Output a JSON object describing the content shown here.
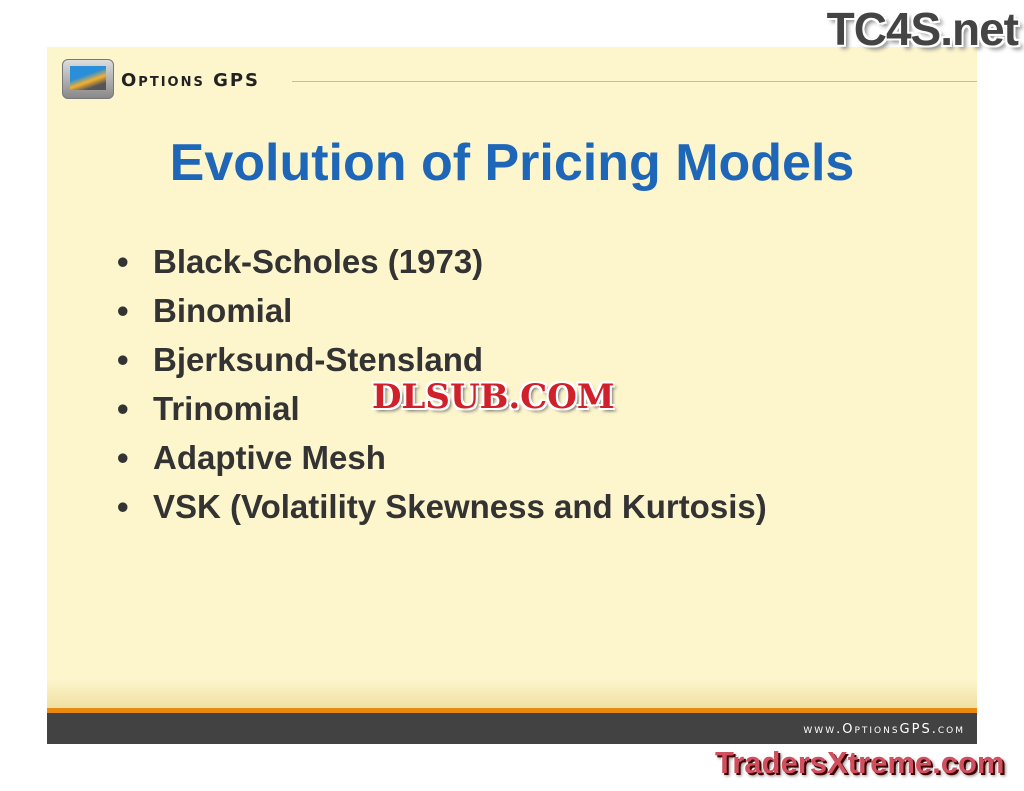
{
  "header": {
    "brand": "Options GPS"
  },
  "title": "Evolution of Pricing Models",
  "bullets": [
    "Black-Scholes  (1973)",
    "Binomial",
    "Bjerksund-Stensland",
    "Trinomial",
    "Adaptive Mesh",
    "VSK (Volatility Skewness and Kurtosis)"
  ],
  "footer": {
    "url": "www.OptionsGPS.com"
  },
  "watermarks": {
    "top": "TC4S.net",
    "middle": "DLSUB.COM",
    "bottom": "TradersXtreme.com"
  },
  "colors": {
    "title": "#1e66b8",
    "background": "#fdf5cc",
    "accent": "#e88a10",
    "footer_band": "#424242"
  }
}
